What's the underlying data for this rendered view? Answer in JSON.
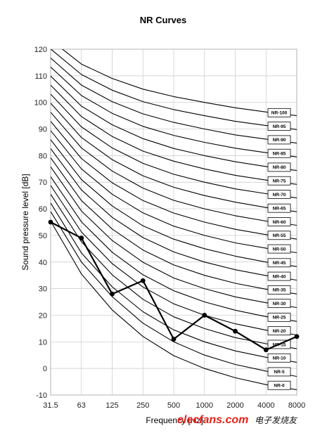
{
  "chart_data": {
    "type": "line",
    "title": "NR Curves",
    "ylabel": "Sound pressure level [dB]",
    "xlabel": "Frequency [Hz]",
    "x_categories": [
      "31.5",
      "63",
      "125",
      "250",
      "500",
      "1000",
      "2000",
      "4000",
      "8000"
    ],
    "ylim": [
      -10,
      120
    ],
    "yticks": [
      -10,
      0,
      10,
      20,
      30,
      40,
      50,
      60,
      70,
      80,
      90,
      100,
      110,
      120
    ],
    "grid": "horizontal and vertical",
    "nr_curves": [
      {
        "name": "NR-0",
        "values": [
          55.4,
          35.5,
          22,
          12,
          4.8,
          0,
          -3.5,
          -6.1,
          -8
        ]
      },
      {
        "name": "NR-5",
        "values": [
          59,
          40,
          27,
          17,
          10,
          5,
          1.5,
          -1,
          -3
        ]
      },
      {
        "name": "NR-10",
        "values": [
          62.2,
          43.4,
          30.7,
          21.3,
          14.5,
          10,
          6.6,
          4.2,
          2.3
        ]
      },
      {
        "name": "NR-15",
        "values": [
          65.5,
          47.6,
          35.2,
          26,
          19.4,
          15,
          11.6,
          9.3,
          7.4
        ]
      },
      {
        "name": "NR-20",
        "values": [
          68.8,
          51.3,
          39.4,
          30.6,
          24.3,
          20,
          16.8,
          14.4,
          12.6
        ]
      },
      {
        "name": "NR-25",
        "values": [
          72.1,
          55.1,
          43.7,
          35.2,
          29.2,
          25,
          21.9,
          19.5,
          17.7
        ]
      },
      {
        "name": "NR-30",
        "values": [
          75.8,
          59.2,
          48.1,
          39.9,
          34,
          30,
          26.9,
          24.7,
          22.9
        ]
      },
      {
        "name": "NR-35",
        "values": [
          79.2,
          63.1,
          52.4,
          44.5,
          38.9,
          35,
          32,
          29.8,
          28
        ]
      },
      {
        "name": "NR-40",
        "values": [
          82.6,
          67.1,
          56.8,
          49.2,
          43.8,
          40,
          37.1,
          34.9,
          33.2
        ]
      },
      {
        "name": "NR-45",
        "values": [
          86,
          71,
          61.1,
          53.6,
          48.6,
          45,
          42.2,
          40,
          38.3
        ]
      },
      {
        "name": "NR-50",
        "values": [
          89.4,
          75,
          65.5,
          58.5,
          53.5,
          50,
          47.2,
          45.2,
          43.5
        ]
      },
      {
        "name": "NR-55",
        "values": [
          92.9,
          78.9,
          69.8,
          63.1,
          58.4,
          55,
          52.3,
          50.3,
          48.6
        ]
      },
      {
        "name": "NR-60",
        "values": [
          96.3,
          82.9,
          74.2,
          67.8,
          63.2,
          60,
          57.4,
          55.4,
          53.8
        ]
      },
      {
        "name": "NR-65",
        "values": [
          99.7,
          86.8,
          78.5,
          72.4,
          68.1,
          65,
          62.5,
          60.5,
          58.9
        ]
      },
      {
        "name": "NR-70",
        "values": [
          103.1,
          90.8,
          82.9,
          77.1,
          73,
          70,
          67.5,
          65.7,
          64.1
        ]
      },
      {
        "name": "NR-75",
        "values": [
          106.5,
          94.7,
          87.2,
          81.7,
          77.9,
          75,
          72.6,
          70.8,
          69.2
        ]
      },
      {
        "name": "NR-80",
        "values": [
          109.9,
          98.6,
          91.6,
          86.4,
          82.7,
          80,
          77.7,
          75.9,
          74.4
        ]
      },
      {
        "name": "NR-85",
        "values": [
          113.3,
          102.6,
          95.9,
          91,
          87.6,
          85,
          82.8,
          81.1,
          79.5
        ]
      },
      {
        "name": "NR-90",
        "values": [
          116.7,
          106.5,
          100.3,
          95.7,
          92.5,
          90,
          87.8,
          86.2,
          84.7
        ]
      },
      {
        "name": "NR-95",
        "values": [
          120.1,
          110.5,
          104.6,
          100.3,
          97.3,
          95,
          92.9,
          91.3,
          89.8
        ]
      },
      {
        "name": "NR-100",
        "values": [
          123.5,
          114.4,
          109,
          105,
          102.2,
          100,
          98,
          96.4,
          95
        ]
      }
    ],
    "measured_series": {
      "values": [
        55,
        49,
        28,
        33,
        11,
        20,
        14,
        7,
        12
      ]
    }
  },
  "watermark": {
    "text": "elecfans.com",
    "text_suffix": "电子发烧友"
  }
}
